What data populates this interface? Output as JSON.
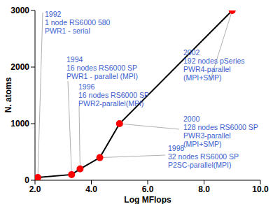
{
  "chart_data": {
    "type": "line",
    "x_label": "Log MFlops",
    "y_label": "N. atoms",
    "x": [
      2.1,
      3.3,
      3.6,
      4.3,
      5.0,
      9.0
    ],
    "values": [
      50,
      100,
      200,
      400,
      1000,
      3000
    ],
    "color": "#000000",
    "marker": "circle",
    "xlim": [
      2,
      10
    ],
    "xticks": [
      {
        "value": 2,
        "label": "2.0"
      },
      {
        "value": 4,
        "label": "4.0"
      },
      {
        "value": 6,
        "label": "6.0"
      },
      {
        "value": 8,
        "label": "8.0"
      },
      {
        "value": 10,
        "label": "10.0"
      }
    ],
    "ylim": [
      0,
      3000
    ],
    "yticks": [
      0,
      1000,
      2000,
      3000
    ],
    "grid": false,
    "annotations": [
      {
        "lines": [
          "1992",
          "1 node RS6000 580",
          "PWR1 - serial"
        ]
      },
      {
        "lines": [
          "1994",
          "16 nodes RS6000 SP",
          "PWR1 - parallel (MPI)"
        ]
      },
      {
        "lines": [
          "1996",
          "16 nodes RS6000 SP",
          "PWR2-parallel(MPI)"
        ]
      },
      {
        "lines": [
          "1998",
          "32 nodes RS6000 SP",
          "P2SC-parallel(MPI)"
        ]
      },
      {
        "lines": [
          "2000",
          "128 nodes RS6000 SP",
          "PWR3-parallel",
          "(MPI+SMP)"
        ]
      },
      {
        "lines": [
          "2002",
          "192 nodes pSeries",
          "PWR4-parallel",
          "(MPI+SMP)"
        ]
      }
    ]
  }
}
